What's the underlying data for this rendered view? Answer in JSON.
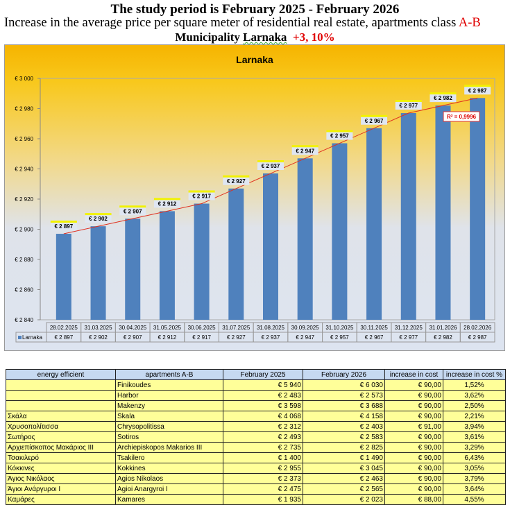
{
  "header": {
    "line1": "The study period is February 2025 - February 2026",
    "line2": "Increase in the average price per square meter of residential real estate, apartments class ",
    "line2_red": "A-B",
    "line3": "Municipality ",
    "line3_u": "Larnaka",
    "line3_red": "+3, 10%"
  },
  "chart_data": {
    "type": "bar",
    "title": "Larnaka",
    "legend": "Larnaka",
    "categories": [
      "28.02.2025",
      "31.03.2025",
      "30.04.2025",
      "31.05.2025",
      "30.06.2025",
      "31.07.2025",
      "31.08.2025",
      "30.09.2025",
      "31.10.2025",
      "30.11.2025",
      "31.12.2025",
      "31.01.2026",
      "28.02.2026"
    ],
    "values": [
      2897,
      2902,
      2907,
      2912,
      2917,
      2927,
      2937,
      2947,
      2957,
      2967,
      2977,
      2982,
      2987
    ],
    "labels": [
      "€ 2 897",
      "€ 2 902",
      "€ 2 907",
      "€ 2 912",
      "€ 2 917",
      "€ 2 927",
      "€ 2 937",
      "€ 2 947",
      "€ 2 957",
      "€ 2 967",
      "€ 2 977",
      "€ 2 982",
      "€ 2 987"
    ],
    "ylim": [
      2840,
      3000
    ],
    "yticks": [
      2840,
      2860,
      2880,
      2900,
      2920,
      2940,
      2960,
      2980,
      3000
    ],
    "ytick_labels": [
      "€ 2 840",
      "€ 2 860",
      "€ 2 880",
      "€ 2 900",
      "€ 2 920",
      "€ 2 940",
      "€ 2 960",
      "€ 2 980",
      "€ 3 000"
    ],
    "trendline": "polynomial",
    "r2_label": "R² = 0,9996",
    "bar_color": "#4f81bd",
    "trend_color": "#e03020"
  },
  "table": {
    "headers": [
      "energy efficient",
      "apartments A-B",
      "February 2025",
      "February 2026",
      "increase in cost",
      "increase in cost %"
    ],
    "rows": [
      [
        "",
        "Finikoudes",
        "€ 5 940",
        "€ 6 030",
        "€ 90,00",
        "1,52%"
      ],
      [
        "",
        "Harbor",
        "€ 2 483",
        "€ 2 573",
        "€ 90,00",
        "3,62%"
      ],
      [
        "",
        "Makenzy",
        "€ 3 598",
        "€ 3 688",
        "€ 90,00",
        "2,50%"
      ],
      [
        "Σκάλα",
        "Skala",
        "€ 4 068",
        "€ 4 158",
        "€ 90,00",
        "2,21%"
      ],
      [
        "Χρυσοπολίτισσα",
        "Chrysopolitissa",
        "€ 2 312",
        "€ 2 403",
        "€ 91,00",
        "3,94%"
      ],
      [
        "Σωτήρος",
        "Sotiros",
        "€ 2 493",
        "€ 2 583",
        "€ 90,00",
        "3,61%"
      ],
      [
        "Αρχιεπίσκοπος Μακάριος ΙΙΙ",
        "Archiepiskopos Makarios III",
        "€ 2 735",
        "€ 2 825",
        "€ 90,00",
        "3,29%"
      ],
      [
        "Τσακιλερό",
        "Tsakilero",
        "€ 1 400",
        "€ 1 490",
        "€ 90,00",
        "6,43%"
      ],
      [
        "Κόκκινες",
        "Kokkines",
        "€ 2 955",
        "€ 3 045",
        "€ 90,00",
        "3,05%"
      ],
      [
        "Άγιος Νικόλαος",
        "Agios Nikolaos",
        "€ 2 373",
        "€ 2 463",
        "€ 90,00",
        "3,79%"
      ],
      [
        "Άγιοι Ανάργυροι Ι",
        "Agioi Anargyroi I",
        "€ 2 475",
        "€ 2 565",
        "€ 90,00",
        "3,64%"
      ],
      [
        "Καμάρες",
        "Kamares",
        "€ 1 935",
        "€ 2 023",
        "€ 88,00",
        "4,55%"
      ]
    ]
  }
}
